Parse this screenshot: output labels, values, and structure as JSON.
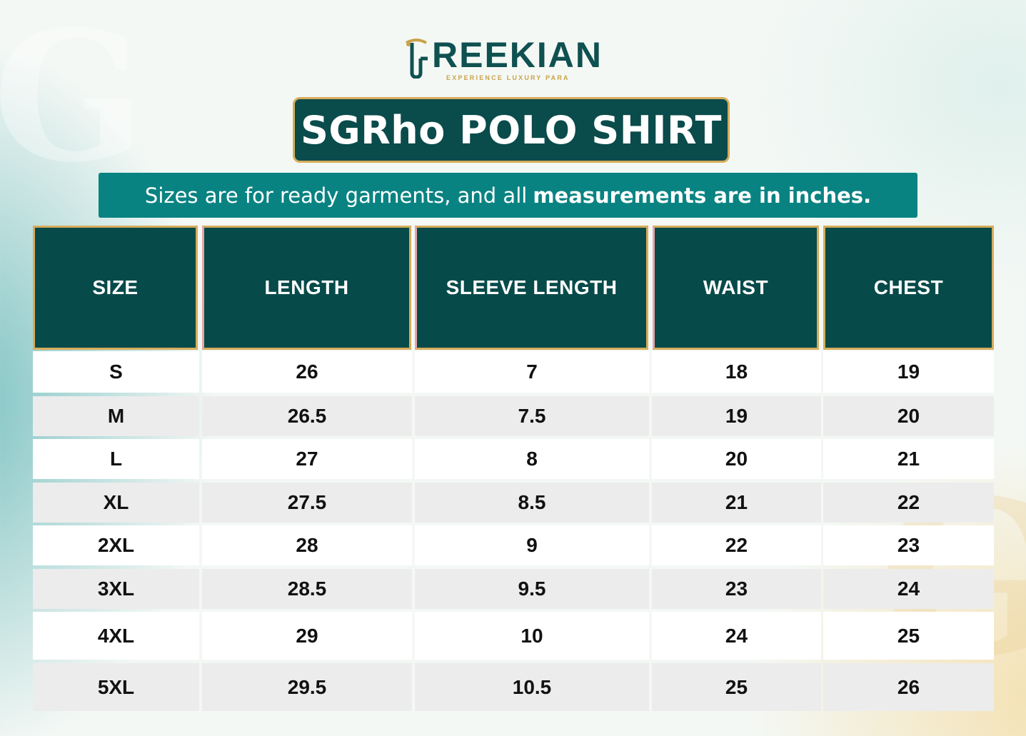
{
  "brand": {
    "name": "REEKIAN",
    "tagline": "EXPERIENCE LUXURY PARA",
    "colors": {
      "dark_teal": "#0a4b4b",
      "teal": "#098382",
      "gold": "#d6ac5c"
    }
  },
  "title": "SGRho POLO SHIRT",
  "subtitle": {
    "normal": "Sizes are for ready garments, and all",
    "bold": "measurements are in inches."
  },
  "table": {
    "headers": [
      "SIZE",
      "LENGTH",
      "SLEEVE LENGTH",
      "WAIST",
      "CHEST"
    ],
    "rows": [
      [
        "S",
        "26",
        "7",
        "18",
        "19"
      ],
      [
        "M",
        "26.5",
        "7.5",
        "19",
        "20"
      ],
      [
        "L",
        "27",
        "8",
        "20",
        "21"
      ],
      [
        "XL",
        "27.5",
        "8.5",
        "21",
        "22"
      ],
      [
        "2XL",
        "28",
        "9",
        "22",
        "23"
      ],
      [
        "3XL",
        "28.5",
        "9.5",
        "23",
        "24"
      ],
      [
        "4XL",
        "29",
        "10",
        "24",
        "25"
      ],
      [
        "5XL",
        "29.5",
        "10.5",
        "25",
        "26"
      ]
    ]
  }
}
